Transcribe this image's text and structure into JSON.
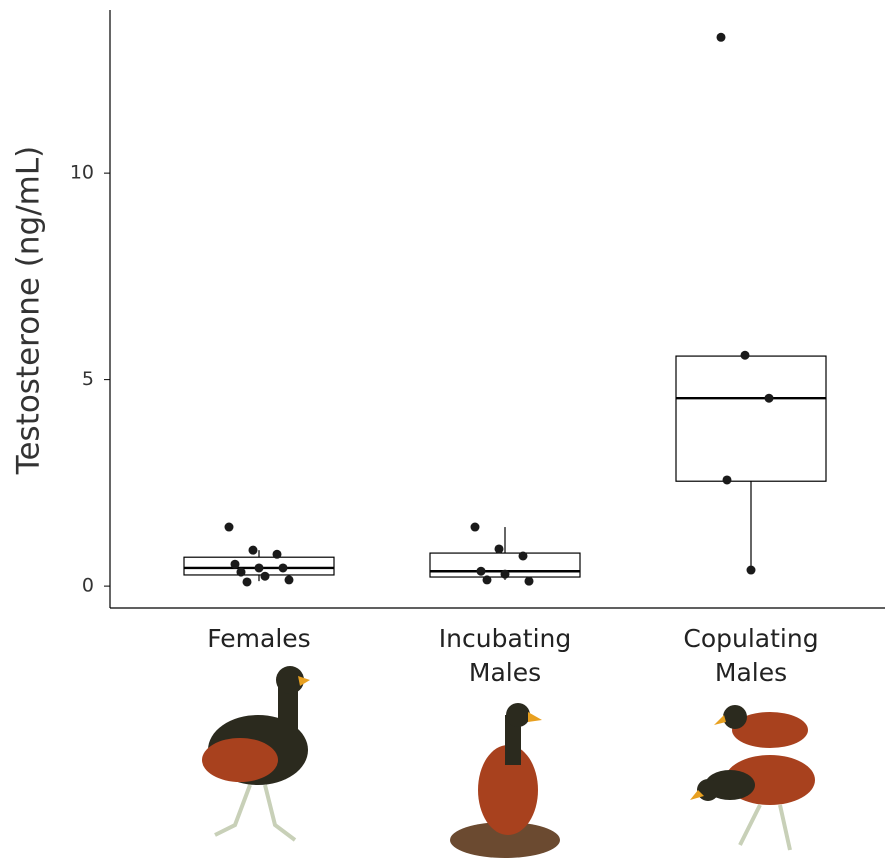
{
  "chart_data": {
    "type": "box",
    "y_label": "Testosterone (ng/mL)",
    "categories": [
      "Females",
      "Incubating Males",
      "Copulating Males"
    ],
    "boxes": [
      {
        "whisker_low": 0.12,
        "q1": 0.27,
        "median": 0.44,
        "q3": 0.7,
        "whisker_high": 0.87,
        "points": [
          1.43,
          0.87,
          0.77,
          0.53,
          0.44,
          0.44,
          0.34,
          0.24,
          0.15,
          0.1
        ]
      },
      {
        "whisker_low": 0.15,
        "q1": 0.22,
        "median": 0.36,
        "q3": 0.8,
        "whisker_high": 1.43,
        "points": [
          1.43,
          0.9,
          0.73,
          0.36,
          0.29,
          0.12,
          0.15
        ]
      },
      {
        "whisker_low": 0.39,
        "q1": 2.54,
        "median": 4.55,
        "q3": 5.57,
        "whisker_high": 5.57,
        "points": [
          13.29,
          5.59,
          4.55,
          2.57,
          0.39
        ]
      }
    ],
    "ylim": [
      -0.53,
      13.95
    ],
    "yticks": [
      0,
      5,
      10
    ],
    "box_color": "#000000",
    "point_color": "#1a1a1a"
  }
}
